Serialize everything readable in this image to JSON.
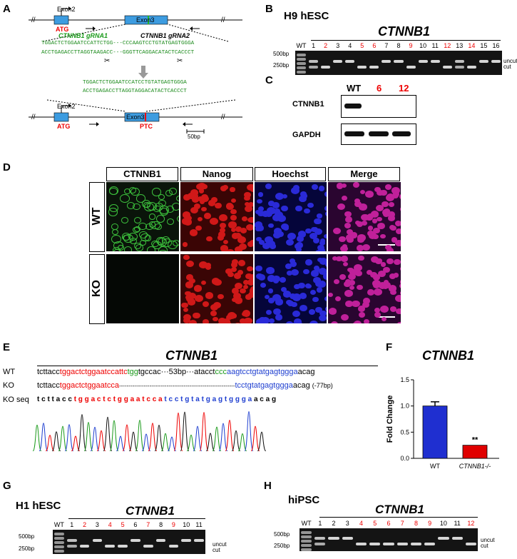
{
  "panels": {
    "A": "A",
    "B": "B",
    "C": "C",
    "D": "D",
    "E": "E",
    "F": "F",
    "G": "G",
    "H": "H"
  },
  "panel_a": {
    "exon2": "Exon2",
    "exon3": "Exon3",
    "atg": "ATG",
    "ptc": "PTC",
    "grna1": "CTNNB1 gRNA1",
    "grna2": "CTNNB1 gRNA2",
    "seq_top1": "TGGACTCTGGAATCCATTCTGG---CCCAAGTCCTGTATGAGTGGGA",
    "seq_top2": "ACCTGAGACCTTAGGTAAGACC---GGGTTCAGGACATACTCACCCT",
    "seq_mid1": "TGGACTCTGGAATCCATCCTGTATGAGTGGGA",
    "seq_mid2": "ACCTGAGACCTTAGGTAGGACATACTCACCCT",
    "scale": "50bp"
  },
  "panel_b": {
    "title": "H9 hESC",
    "gene": "CTNNB1",
    "lanes": [
      "WT",
      "1",
      "2",
      "3",
      "4",
      "5",
      "6",
      "7",
      "8",
      "9",
      "10",
      "11",
      "12",
      "13",
      "14",
      "15",
      "16"
    ],
    "red_lanes": [
      "2",
      "5",
      "6",
      "9",
      "12",
      "14"
    ],
    "ladder_500": "500bp",
    "ladder_250": "250bp",
    "uncut": "uncut",
    "cut": "cut"
  },
  "panel_c": {
    "lanes": [
      "WT",
      "6",
      "12"
    ],
    "row1": "CTNNB1",
    "row2": "GAPDH"
  },
  "panel_d": {
    "cols": [
      "CTNNB1",
      "Nanog",
      "Hoechst",
      "Merge"
    ],
    "rows": [
      "WT",
      "KO"
    ]
  },
  "panel_e": {
    "gene": "CTNNB1",
    "wt_label": "WT",
    "ko_label": "KO",
    "koseq_label": "KO seq",
    "wt_seq": [
      "tcttacc",
      "tggactctggaatccattc",
      "tgg",
      "tgccac···53bp···atacct",
      "ccc",
      "aagtcctgtatgagtggga",
      "acag"
    ],
    "ko_seq": [
      "tcttacc",
      "tggactctggaatcca",
      "-------------------------------------------------------------",
      "tcctgtatgagtggga",
      "acag"
    ],
    "ko_note": "(-77bp)",
    "koseq_seq": [
      "t c t t a c c ",
      "t g g a c t c t g g a a t c c a ",
      "t c c t g t a t g a g t g g g a ",
      "a c a g"
    ]
  },
  "panel_f": {
    "gene": "CTNNB1",
    "ylabel": "Fold Change",
    "sig": "**"
  },
  "chart_data": {
    "type": "bar",
    "title": "CTNNB1",
    "categories": [
      "WT",
      "CTNNB1-/-"
    ],
    "values": [
      1.0,
      0.25
    ],
    "errors": [
      0.08,
      0.0
    ],
    "colors": [
      "#1f2fd0",
      "#e00000"
    ],
    "ylabel": "Fold Change",
    "ylim": [
      0,
      1.5
    ],
    "yticks": [
      "0.0",
      "0.5",
      "1.0",
      "1.5"
    ]
  },
  "panel_g": {
    "title": "H1 hESC",
    "gene": "CTNNB1",
    "lanes": [
      "WT",
      "1",
      "2",
      "3",
      "4",
      "5",
      "6",
      "7",
      "8",
      "9",
      "10",
      "11"
    ],
    "red_lanes": [
      "2",
      "4",
      "5",
      "7",
      "9"
    ],
    "ladder_500": "500bp",
    "ladder_250": "250bp",
    "uncut": "uncut",
    "cut": "cut"
  },
  "panel_h": {
    "title": "hiPSC",
    "gene": "CTNNB1",
    "lanes": [
      "WT",
      "1",
      "2",
      "3",
      "4",
      "5",
      "6",
      "7",
      "8",
      "9",
      "10",
      "11",
      "12"
    ],
    "red_lanes": [
      "4",
      "5",
      "6",
      "7",
      "8",
      "9",
      "12"
    ],
    "ladder_500": "500bp",
    "ladder_250": "250bp",
    "uncut": "uncut",
    "cut": "cut"
  }
}
